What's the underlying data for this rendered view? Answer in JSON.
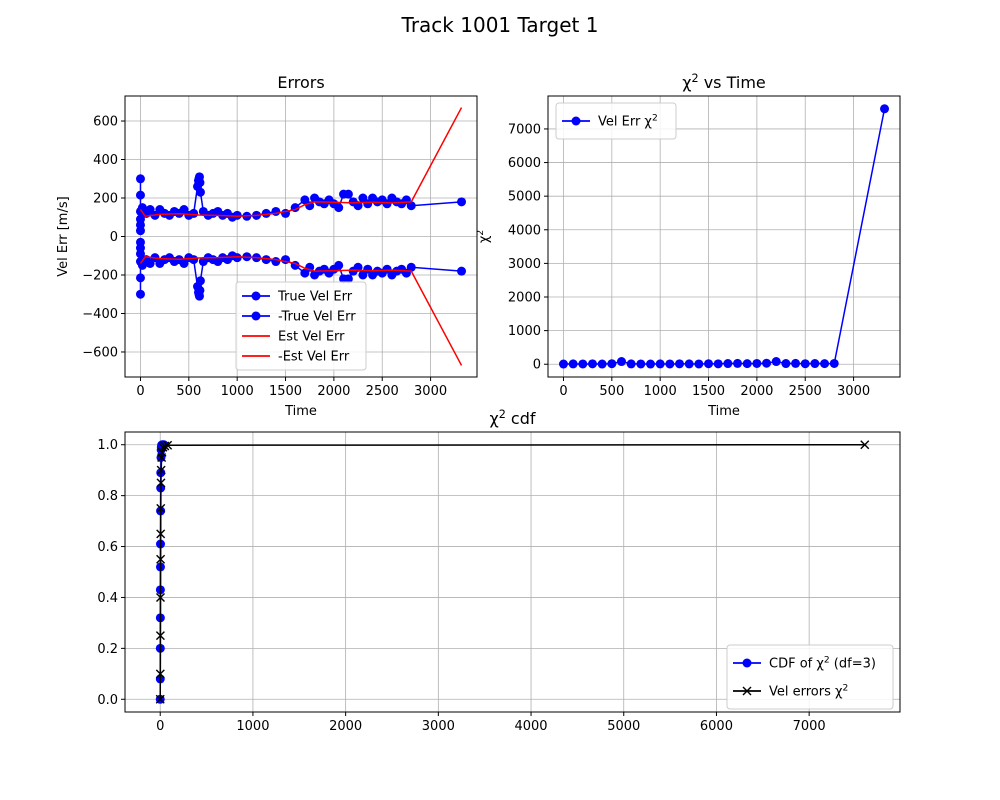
{
  "figure": {
    "suptitle": "Track 1001 Target 1"
  },
  "colors": {
    "blue": "#0000ff",
    "red": "#ff0000",
    "black": "#000000",
    "grid": "#b0b0b0"
  },
  "chart_data": [
    {
      "id": "errors",
      "type": "scatter",
      "title": "Errors",
      "xlabel": "Time",
      "ylabel": "Vel Err [m/s]",
      "xlim": [
        -160,
        3480
      ],
      "ylim": [
        -730,
        730
      ],
      "xticks": [
        0,
        500,
        1000,
        1500,
        2000,
        2500,
        3000
      ],
      "yticks": [
        -600,
        -400,
        -200,
        0,
        200,
        400,
        600
      ],
      "grid": true,
      "legend_position": "lower-center",
      "series": [
        {
          "name": "True Vel Err",
          "color": "#0000ff",
          "marker": "circle",
          "line": true,
          "x": [
            0,
            0,
            0,
            0,
            0,
            0,
            20,
            60,
            100,
            150,
            200,
            250,
            300,
            350,
            400,
            450,
            500,
            550,
            590,
            600,
            605,
            610,
            615,
            620,
            650,
            700,
            750,
            800,
            850,
            900,
            950,
            1000,
            1100,
            1200,
            1300,
            1400,
            1500,
            1600,
            1700,
            1750,
            1800,
            1850,
            1900,
            1950,
            2000,
            2050,
            2100,
            2150,
            2200,
            2250,
            2300,
            2350,
            2400,
            2450,
            2500,
            2550,
            2600,
            2650,
            2700,
            2750,
            2800,
            3320
          ],
          "y": [
            300,
            215,
            130,
            90,
            60,
            30,
            150,
            120,
            140,
            110,
            140,
            120,
            110,
            130,
            120,
            140,
            110,
            120,
            260,
            290,
            300,
            310,
            280,
            230,
            130,
            110,
            120,
            130,
            110,
            120,
            100,
            110,
            105,
            110,
            120,
            130,
            120,
            150,
            190,
            160,
            200,
            180,
            170,
            190,
            170,
            150,
            220,
            220,
            180,
            160,
            200,
            170,
            200,
            180,
            190,
            170,
            200,
            180,
            170,
            190,
            160,
            180
          ]
        },
        {
          "name": "-True Vel Err",
          "color": "#0000ff",
          "marker": "circle",
          "line": true,
          "x": [
            0,
            0,
            0,
            0,
            0,
            0,
            20,
            60,
            100,
            150,
            200,
            250,
            300,
            350,
            400,
            450,
            500,
            550,
            590,
            600,
            605,
            610,
            615,
            620,
            650,
            700,
            750,
            800,
            850,
            900,
            950,
            1000,
            1100,
            1200,
            1300,
            1400,
            1500,
            1600,
            1700,
            1750,
            1800,
            1850,
            1900,
            1950,
            2000,
            2050,
            2100,
            2150,
            2200,
            2250,
            2300,
            2350,
            2400,
            2450,
            2500,
            2550,
            2600,
            2650,
            2700,
            2750,
            2800,
            3320
          ],
          "y": [
            -300,
            -215,
            -130,
            -90,
            -60,
            -30,
            -150,
            -120,
            -140,
            -110,
            -140,
            -120,
            -110,
            -130,
            -120,
            -140,
            -110,
            -120,
            -260,
            -290,
            -300,
            -310,
            -280,
            -230,
            -130,
            -110,
            -120,
            -130,
            -110,
            -120,
            -100,
            -110,
            -105,
            -110,
            -120,
            -130,
            -120,
            -150,
            -190,
            -160,
            -200,
            -180,
            -170,
            -190,
            -170,
            -150,
            -220,
            -220,
            -180,
            -160,
            -200,
            -170,
            -200,
            -180,
            -190,
            -170,
            -200,
            -180,
            -170,
            -190,
            -160,
            -180
          ]
        },
        {
          "name": "Est Vel Err",
          "color": "#ff0000",
          "marker": "none",
          "line": true,
          "x": [
            0,
            50,
            200,
            400,
            600,
            800,
            1000,
            1200,
            1400,
            1600,
            1700,
            1800,
            2000,
            2200,
            2400,
            2600,
            2800,
            3320
          ],
          "y": [
            140,
            105,
            115,
            118,
            112,
            110,
            105,
            110,
            120,
            140,
            165,
            180,
            178,
            175,
            178,
            175,
            180,
            670
          ]
        },
        {
          "name": "-Est Vel Err",
          "color": "#ff0000",
          "marker": "none",
          "line": true,
          "x": [
            0,
            50,
            200,
            400,
            600,
            800,
            1000,
            1200,
            1400,
            1600,
            1700,
            1800,
            2000,
            2200,
            2400,
            2600,
            2800,
            3320
          ],
          "y": [
            -140,
            -105,
            -115,
            -118,
            -112,
            -110,
            -105,
            -110,
            -120,
            -140,
            -165,
            -180,
            -178,
            -175,
            -178,
            -175,
            -180,
            -670
          ]
        }
      ]
    },
    {
      "id": "chi2-vs-time",
      "type": "line",
      "title": "χ² vs Time",
      "xlabel": "Time",
      "ylabel": "χ²",
      "xlim": [
        -160,
        3480
      ],
      "ylim": [
        -380,
        7980
      ],
      "xticks": [
        0,
        500,
        1000,
        1500,
        2000,
        2500,
        3000
      ],
      "yticks": [
        0,
        1000,
        2000,
        3000,
        4000,
        5000,
        6000,
        7000
      ],
      "grid": true,
      "legend_position": "top-left",
      "series": [
        {
          "name": "Vel  Err χ²",
          "color": "#0000ff",
          "marker": "circle",
          "x": [
            0,
            100,
            200,
            300,
            400,
            500,
            600,
            700,
            800,
            900,
            1000,
            1100,
            1200,
            1300,
            1400,
            1500,
            1600,
            1700,
            1800,
            1900,
            2000,
            2100,
            2200,
            2300,
            2400,
            2500,
            2600,
            2700,
            2800,
            3320
          ],
          "y": [
            5,
            10,
            8,
            12,
            6,
            15,
            80,
            10,
            8,
            6,
            9,
            7,
            12,
            10,
            8,
            15,
            12,
            20,
            25,
            18,
            22,
            30,
            80,
            20,
            25,
            15,
            20,
            18,
            22,
            7600
          ]
        }
      ]
    },
    {
      "id": "chi2-cdf",
      "type": "line",
      "title": "χ² cdf",
      "xlabel": "",
      "ylabel": "",
      "xlim": [
        -380,
        7980
      ],
      "ylim": [
        -0.05,
        1.05
      ],
      "xticks": [
        0,
        1000,
        2000,
        3000,
        4000,
        5000,
        6000,
        7000
      ],
      "yticks": [
        0.0,
        0.2,
        0.4,
        0.6,
        0.8,
        1.0
      ],
      "grid": true,
      "legend_position": "lower-right",
      "series": [
        {
          "name": "CDF of χ² (df=3)",
          "color": "#0000ff",
          "marker": "circle",
          "x": [
            0,
            0.5,
            1,
            1.5,
            2,
            2.5,
            3,
            4,
            5,
            6,
            8,
            10,
            12,
            15,
            20,
            30,
            40
          ],
          "y": [
            0.0,
            0.08,
            0.2,
            0.32,
            0.43,
            0.52,
            0.61,
            0.74,
            0.83,
            0.89,
            0.95,
            0.98,
            0.99,
            0.998,
            0.9998,
            1.0,
            1.0
          ]
        },
        {
          "name": "Vel errors χ²",
          "color": "#000000",
          "marker": "x",
          "x": [
            0,
            1,
            2,
            3,
            4,
            5,
            6,
            8,
            10,
            15,
            20,
            30,
            50,
            80,
            7600
          ],
          "y": [
            0.0,
            0.1,
            0.25,
            0.4,
            0.55,
            0.65,
            0.75,
            0.85,
            0.9,
            0.95,
            0.97,
            0.99,
            0.995,
            0.998,
            1.0
          ]
        }
      ]
    }
  ]
}
